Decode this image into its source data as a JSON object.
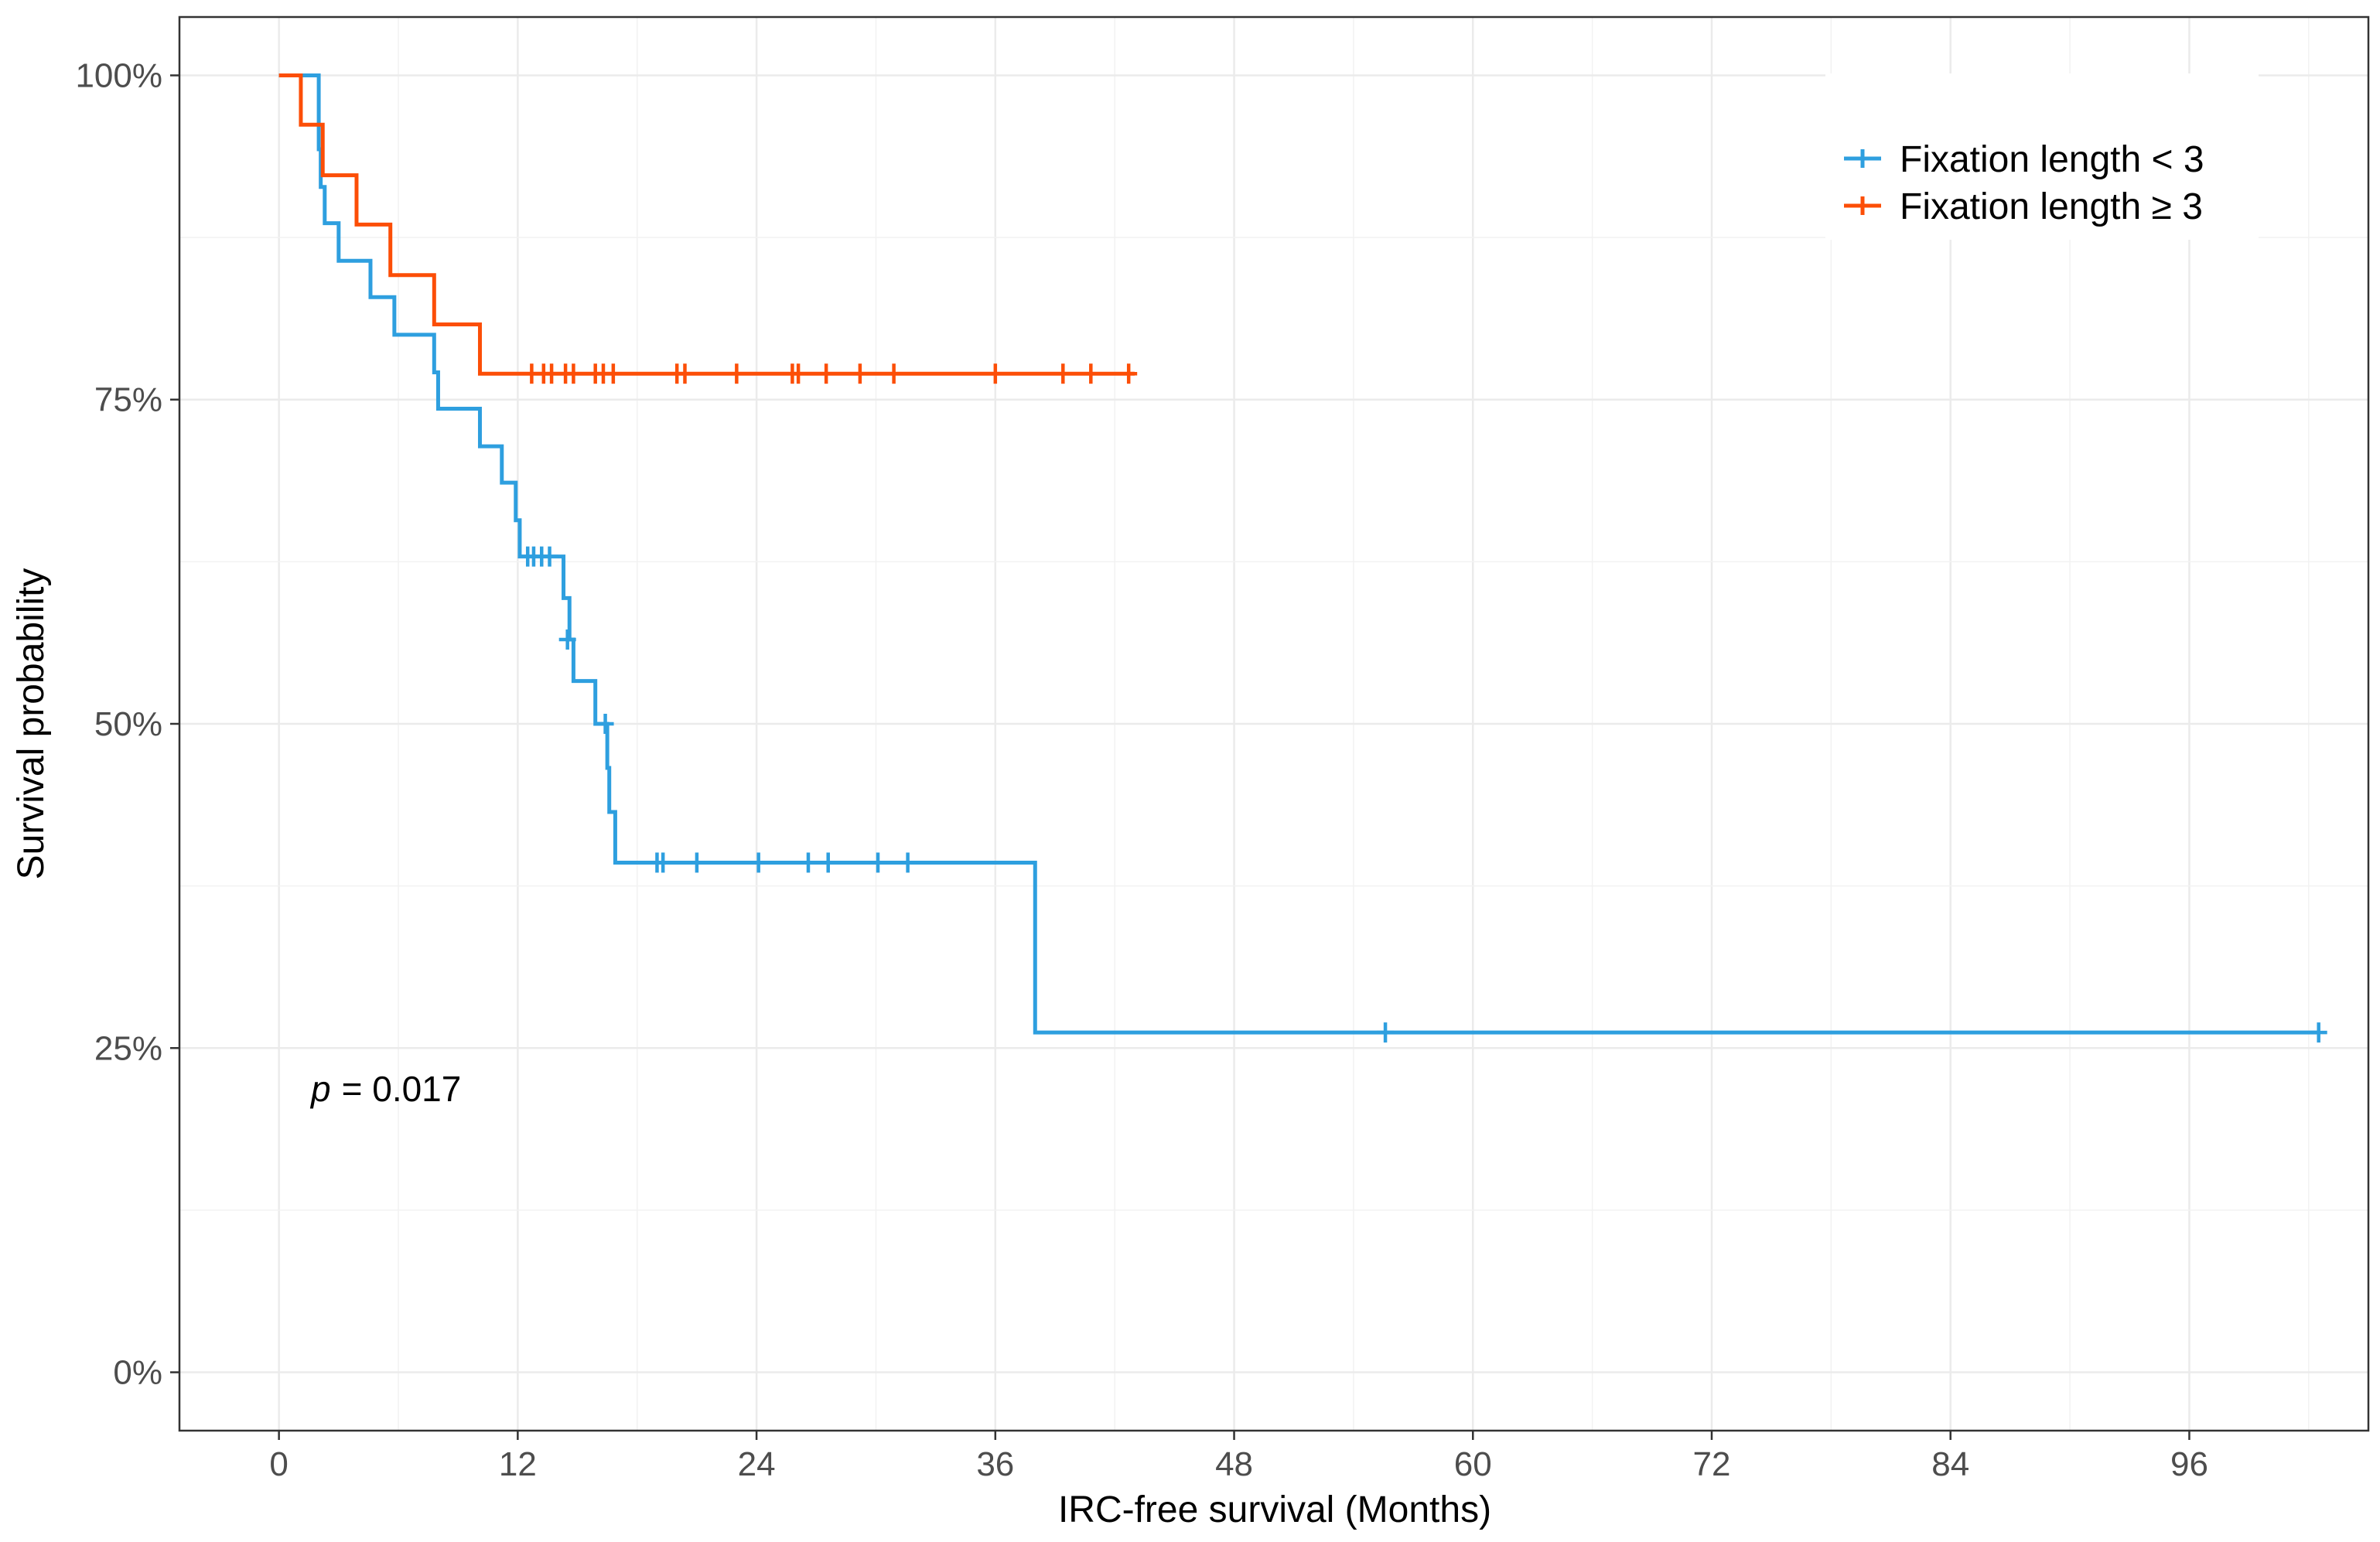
{
  "chart_data": {
    "type": "line",
    "subtype": "kaplan-meier step",
    "xlabel": "IRC-free survival (Months)",
    "ylabel": "Survival probability",
    "xlim": [
      -5,
      105
    ],
    "ylim": [
      -0.045,
      1.045
    ],
    "x_ticks": [
      0,
      12,
      24,
      36,
      48,
      60,
      72,
      84,
      96
    ],
    "x_tick_labels": [
      "0",
      "12",
      "24",
      "36",
      "48",
      "60",
      "72",
      "84",
      "96"
    ],
    "y_ticks": [
      0,
      0.25,
      0.5,
      0.75,
      1.0
    ],
    "y_tick_labels": [
      "0%",
      "25%",
      "50%",
      "75%",
      "100%"
    ],
    "grid": true,
    "legend_position": "top-right",
    "annotation": {
      "p_symbol": "p",
      "p_value": "= 0.017"
    },
    "series": [
      {
        "name": "Fixation length < 3",
        "color": "#2e9fdf",
        "steps": [
          [
            0,
            1.0
          ],
          [
            2.0,
            0.943
          ],
          [
            2.1,
            0.914
          ],
          [
            2.3,
            0.886
          ],
          [
            3.0,
            0.857
          ],
          [
            4.6,
            0.829
          ],
          [
            5.8,
            0.8
          ],
          [
            7.8,
            0.771
          ],
          [
            8.0,
            0.743
          ],
          [
            10.1,
            0.714
          ],
          [
            11.2,
            0.686
          ],
          [
            11.9,
            0.657
          ],
          [
            12.1,
            0.629
          ],
          [
            14.3,
            0.597
          ],
          [
            14.6,
            0.565
          ],
          [
            14.8,
            0.533
          ],
          [
            15.9,
            0.5
          ],
          [
            16.5,
            0.466
          ],
          [
            16.6,
            0.432
          ],
          [
            16.9,
            0.393
          ],
          [
            38.0,
            0.262
          ],
          [
            102.5,
            0.262
          ]
        ],
        "censor_times": [
          12.5,
          12.8,
          13.2,
          13.6,
          14.5,
          16.4,
          19.0,
          19.3,
          21.0,
          24.1,
          26.6,
          27.6,
          30.1,
          31.6,
          55.6,
          102.5
        ],
        "censor_values": [
          0.629,
          0.629,
          0.629,
          0.629,
          0.565,
          0.5,
          0.393,
          0.393,
          0.393,
          0.393,
          0.393,
          0.393,
          0.393,
          0.393,
          0.262,
          0.262
        ]
      },
      {
        "name": "Fixation length ≥ 3",
        "color": "#fc4e07",
        "steps": [
          [
            0,
            1.0
          ],
          [
            1.1,
            0.962
          ],
          [
            2.2,
            0.923
          ],
          [
            3.9,
            0.885
          ],
          [
            5.6,
            0.846
          ],
          [
            7.8,
            0.808
          ],
          [
            10.1,
            0.77
          ],
          [
            43.0,
            0.77
          ]
        ],
        "censor_times": [
          12.7,
          13.3,
          13.7,
          14.4,
          14.8,
          15.9,
          16.3,
          16.8,
          20.0,
          20.4,
          23.0,
          25.8,
          26.1,
          27.5,
          29.2,
          30.9,
          36.0,
          39.4,
          40.8,
          42.7
        ],
        "censor_values": [
          0.77,
          0.77,
          0.77,
          0.77,
          0.77,
          0.77,
          0.77,
          0.77,
          0.77,
          0.77,
          0.77,
          0.77,
          0.77,
          0.77,
          0.77,
          0.77,
          0.77,
          0.77,
          0.77,
          0.77
        ]
      }
    ]
  }
}
